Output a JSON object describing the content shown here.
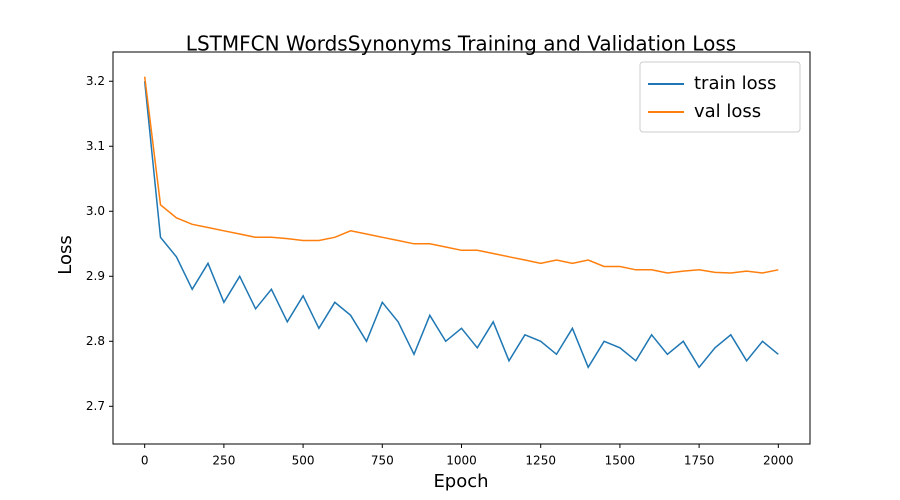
{
  "chart_data": {
    "type": "line",
    "title": "LSTMFCN WordsSynonyms Training and Validation Loss",
    "x_label": "Epoch",
    "y_label": "Loss",
    "x": [
      0,
      50,
      100,
      150,
      200,
      250,
      300,
      350,
      400,
      450,
      500,
      550,
      600,
      650,
      700,
      750,
      800,
      850,
      900,
      950,
      1000,
      1050,
      1100,
      1150,
      1200,
      1250,
      1300,
      1350,
      1400,
      1450,
      1500,
      1550,
      1600,
      1650,
      1700,
      1750,
      1800,
      1850,
      1900,
      1950,
      2000
    ],
    "series": [
      {
        "name": "train loss",
        "color": "#1f77b4",
        "values": [
          3.2,
          2.96,
          2.93,
          2.88,
          2.92,
          2.86,
          2.9,
          2.85,
          2.88,
          2.83,
          2.87,
          2.82,
          2.86,
          2.84,
          2.8,
          2.86,
          2.83,
          2.78,
          2.84,
          2.8,
          2.82,
          2.79,
          2.83,
          2.77,
          2.81,
          2.8,
          2.78,
          2.82,
          2.76,
          2.8,
          2.79,
          2.77,
          2.81,
          2.78,
          2.8,
          2.76,
          2.79,
          2.81,
          2.77,
          2.8,
          2.78
        ]
      },
      {
        "name": "val loss",
        "color": "#ff7f0e",
        "values": [
          3.207,
          3.01,
          2.99,
          2.98,
          2.975,
          2.97,
          2.965,
          2.96,
          2.96,
          2.958,
          2.955,
          2.955,
          2.96,
          2.97,
          2.965,
          2.96,
          2.955,
          2.95,
          2.95,
          2.945,
          2.94,
          2.94,
          2.935,
          2.93,
          2.925,
          2.92,
          2.925,
          2.92,
          2.925,
          2.915,
          2.915,
          2.91,
          2.91,
          2.905,
          2.908,
          2.91,
          2.906,
          2.905,
          2.908,
          2.905,
          2.91
        ]
      }
    ],
    "xlim": [
      -100,
      2100
    ],
    "ylim": [
      2.642,
      3.245
    ],
    "xticks": [
      0,
      250,
      500,
      750,
      1000,
      1250,
      1500,
      1750,
      2000
    ],
    "yticks": [
      2.7,
      2.8,
      2.9,
      {
        "value": 3,
        "label": "3.0"
      },
      3.1,
      3.2
    ],
    "legend": "upper right"
  }
}
